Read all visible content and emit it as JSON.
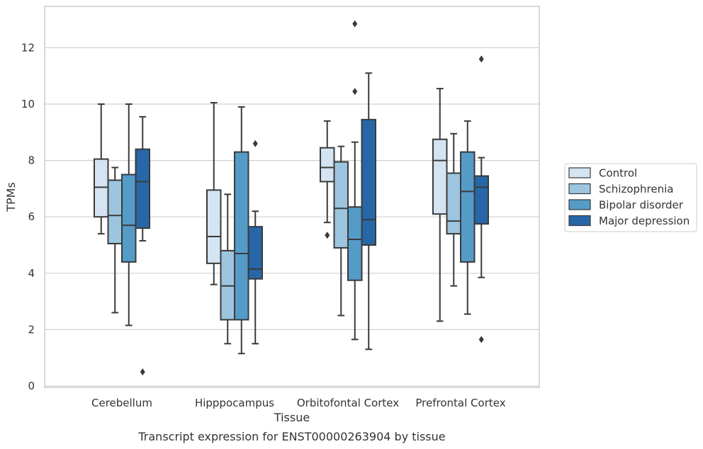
{
  "caption": "Transcript expression for ENST00000263904 by tissue",
  "colors": {
    "Control": "#d5e4f2",
    "Schizophrenia": "#9dc5df",
    "Bipolar disorder": "#559bc8",
    "Major depression": "#2767a8",
    "line": "#3a3a3a",
    "grid": "#d0d0d0",
    "frame": "#cccccc"
  },
  "chart_data": {
    "type": "box",
    "xlabel": "Tissue",
    "ylabel": "TPMs",
    "ylim": [
      0,
      13.5
    ],
    "yticks": [
      0,
      2,
      4,
      6,
      8,
      10,
      12
    ],
    "grid": true,
    "legend_position": "right",
    "categories": [
      "Cerebellum",
      "Hipppocampus",
      "Orbitofontal Cortex",
      "Prefrontal Cortex"
    ],
    "series": [
      {
        "name": "Control",
        "boxes": [
          {
            "q1": 6.0,
            "median": 7.05,
            "q3": 8.05,
            "whislo": 5.4,
            "whishi": 10.0,
            "fliers": []
          },
          {
            "q1": 4.35,
            "median": 5.3,
            "q3": 6.95,
            "whislo": 3.6,
            "whishi": 10.05,
            "fliers": []
          },
          {
            "q1": 7.25,
            "median": 7.75,
            "q3": 8.45,
            "whislo": 5.8,
            "whishi": 9.4,
            "fliers": [
              5.35
            ]
          },
          {
            "q1": 6.1,
            "median": 8.0,
            "q3": 8.75,
            "whislo": 2.3,
            "whishi": 10.55,
            "fliers": []
          }
        ]
      },
      {
        "name": "Schizophrenia",
        "boxes": [
          {
            "q1": 5.05,
            "median": 6.05,
            "q3": 7.3,
            "whislo": 2.6,
            "whishi": 7.75,
            "fliers": []
          },
          {
            "q1": 2.35,
            "median": 3.55,
            "q3": 4.8,
            "whislo": 1.5,
            "whishi": 6.8,
            "fliers": []
          },
          {
            "q1": 4.9,
            "median": 6.3,
            "q3": 7.95,
            "whislo": 2.5,
            "whishi": 8.5,
            "fliers": []
          },
          {
            "q1": 5.4,
            "median": 5.85,
            "q3": 7.55,
            "whislo": 3.55,
            "whishi": 8.95,
            "fliers": []
          }
        ]
      },
      {
        "name": "Bipolar disorder",
        "boxes": [
          {
            "q1": 4.4,
            "median": 5.7,
            "q3": 7.5,
            "whislo": 2.15,
            "whishi": 10.0,
            "fliers": []
          },
          {
            "q1": 2.35,
            "median": 4.7,
            "q3": 8.3,
            "whislo": 1.15,
            "whishi": 9.9,
            "fliers": []
          },
          {
            "q1": 3.75,
            "median": 5.2,
            "q3": 6.35,
            "whislo": 1.65,
            "whishi": 8.65,
            "fliers": [
              10.45,
              12.85
            ]
          },
          {
            "q1": 4.4,
            "median": 6.9,
            "q3": 8.3,
            "whislo": 2.55,
            "whishi": 9.4,
            "fliers": []
          }
        ]
      },
      {
        "name": "Major depression",
        "boxes": [
          {
            "q1": 5.6,
            "median": 7.25,
            "q3": 8.4,
            "whislo": 5.15,
            "whishi": 9.55,
            "fliers": [
              0.5
            ]
          },
          {
            "q1": 3.8,
            "median": 4.15,
            "q3": 5.65,
            "whislo": 1.5,
            "whishi": 6.2,
            "fliers": [
              8.6
            ]
          },
          {
            "q1": 5.0,
            "median": 5.9,
            "q3": 9.45,
            "whislo": 1.3,
            "whishi": 11.1,
            "fliers": []
          },
          {
            "q1": 5.75,
            "median": 7.05,
            "q3": 7.45,
            "whislo": 3.85,
            "whishi": 8.1,
            "fliers": [
              1.65,
              11.6
            ]
          }
        ]
      }
    ]
  }
}
